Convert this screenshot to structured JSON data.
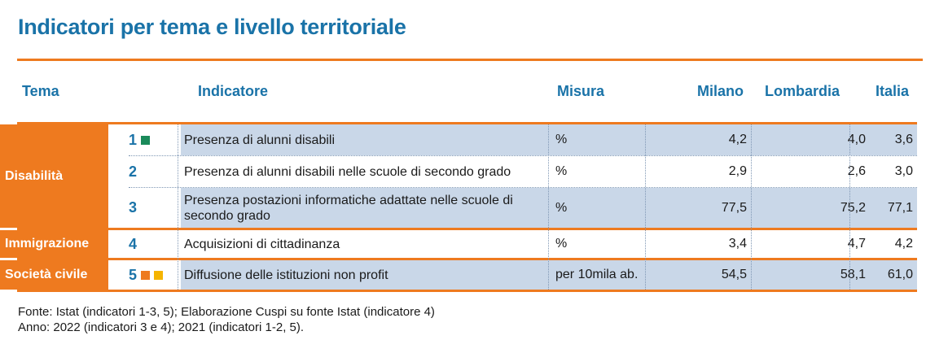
{
  "title": "Indicatori per tema e livello territoriale",
  "headers": {
    "tema": "Tema",
    "indicatore": "Indicatore",
    "misura": "Misura",
    "milano": "Milano",
    "lombardia": "Lombardia",
    "italia": "Italia"
  },
  "groups": {
    "disabilita": "Disabilità",
    "immigrazione": "Immigrazione",
    "societa_civile": "Società civile"
  },
  "rows": [
    {
      "num": "1",
      "indicatore": "Presenza di alunni disabili",
      "misura": "%",
      "milano": "4,2",
      "lombardia": "4,0",
      "italia": "3,6"
    },
    {
      "num": "2",
      "indicatore": "Presenza di alunni disabili nelle scuole di secondo grado",
      "misura": "%",
      "milano": "2,9",
      "lombardia": "2,6",
      "italia": "3,0"
    },
    {
      "num": "3",
      "indicatore": "Presenza postazioni informatiche adattate nelle scuole di secondo grado",
      "misura": "%",
      "milano": "77,5",
      "lombardia": "75,2",
      "italia": "77,1"
    },
    {
      "num": "4",
      "indicatore": "Acquisizioni di cittadinanza",
      "misura": "%",
      "milano": "3,4",
      "lombardia": "4,7",
      "italia": "4,2"
    },
    {
      "num": "5",
      "indicatore": "Diffusione delle istituzioni non profit",
      "misura": "per 10mila ab.",
      "milano": "54,5",
      "lombardia": "58,1",
      "italia": "61,0"
    }
  ],
  "colors": {
    "accent_orange": "#ee7a1f",
    "title_blue": "#1a73a8",
    "row_shade": "#c9d7e8",
    "marker_green": "#1a8a5a",
    "marker_orange": "#ee7a1f",
    "marker_yellow": "#f5b400"
  },
  "footer": {
    "fonte": "Fonte: Istat (indicatori 1-3, 5); Elaborazione Cuspi su fonte Istat (indicatore 4)",
    "anno": "Anno: 2022 (indicatori 3 e 4); 2021 (indicatori 1-2, 5)."
  }
}
